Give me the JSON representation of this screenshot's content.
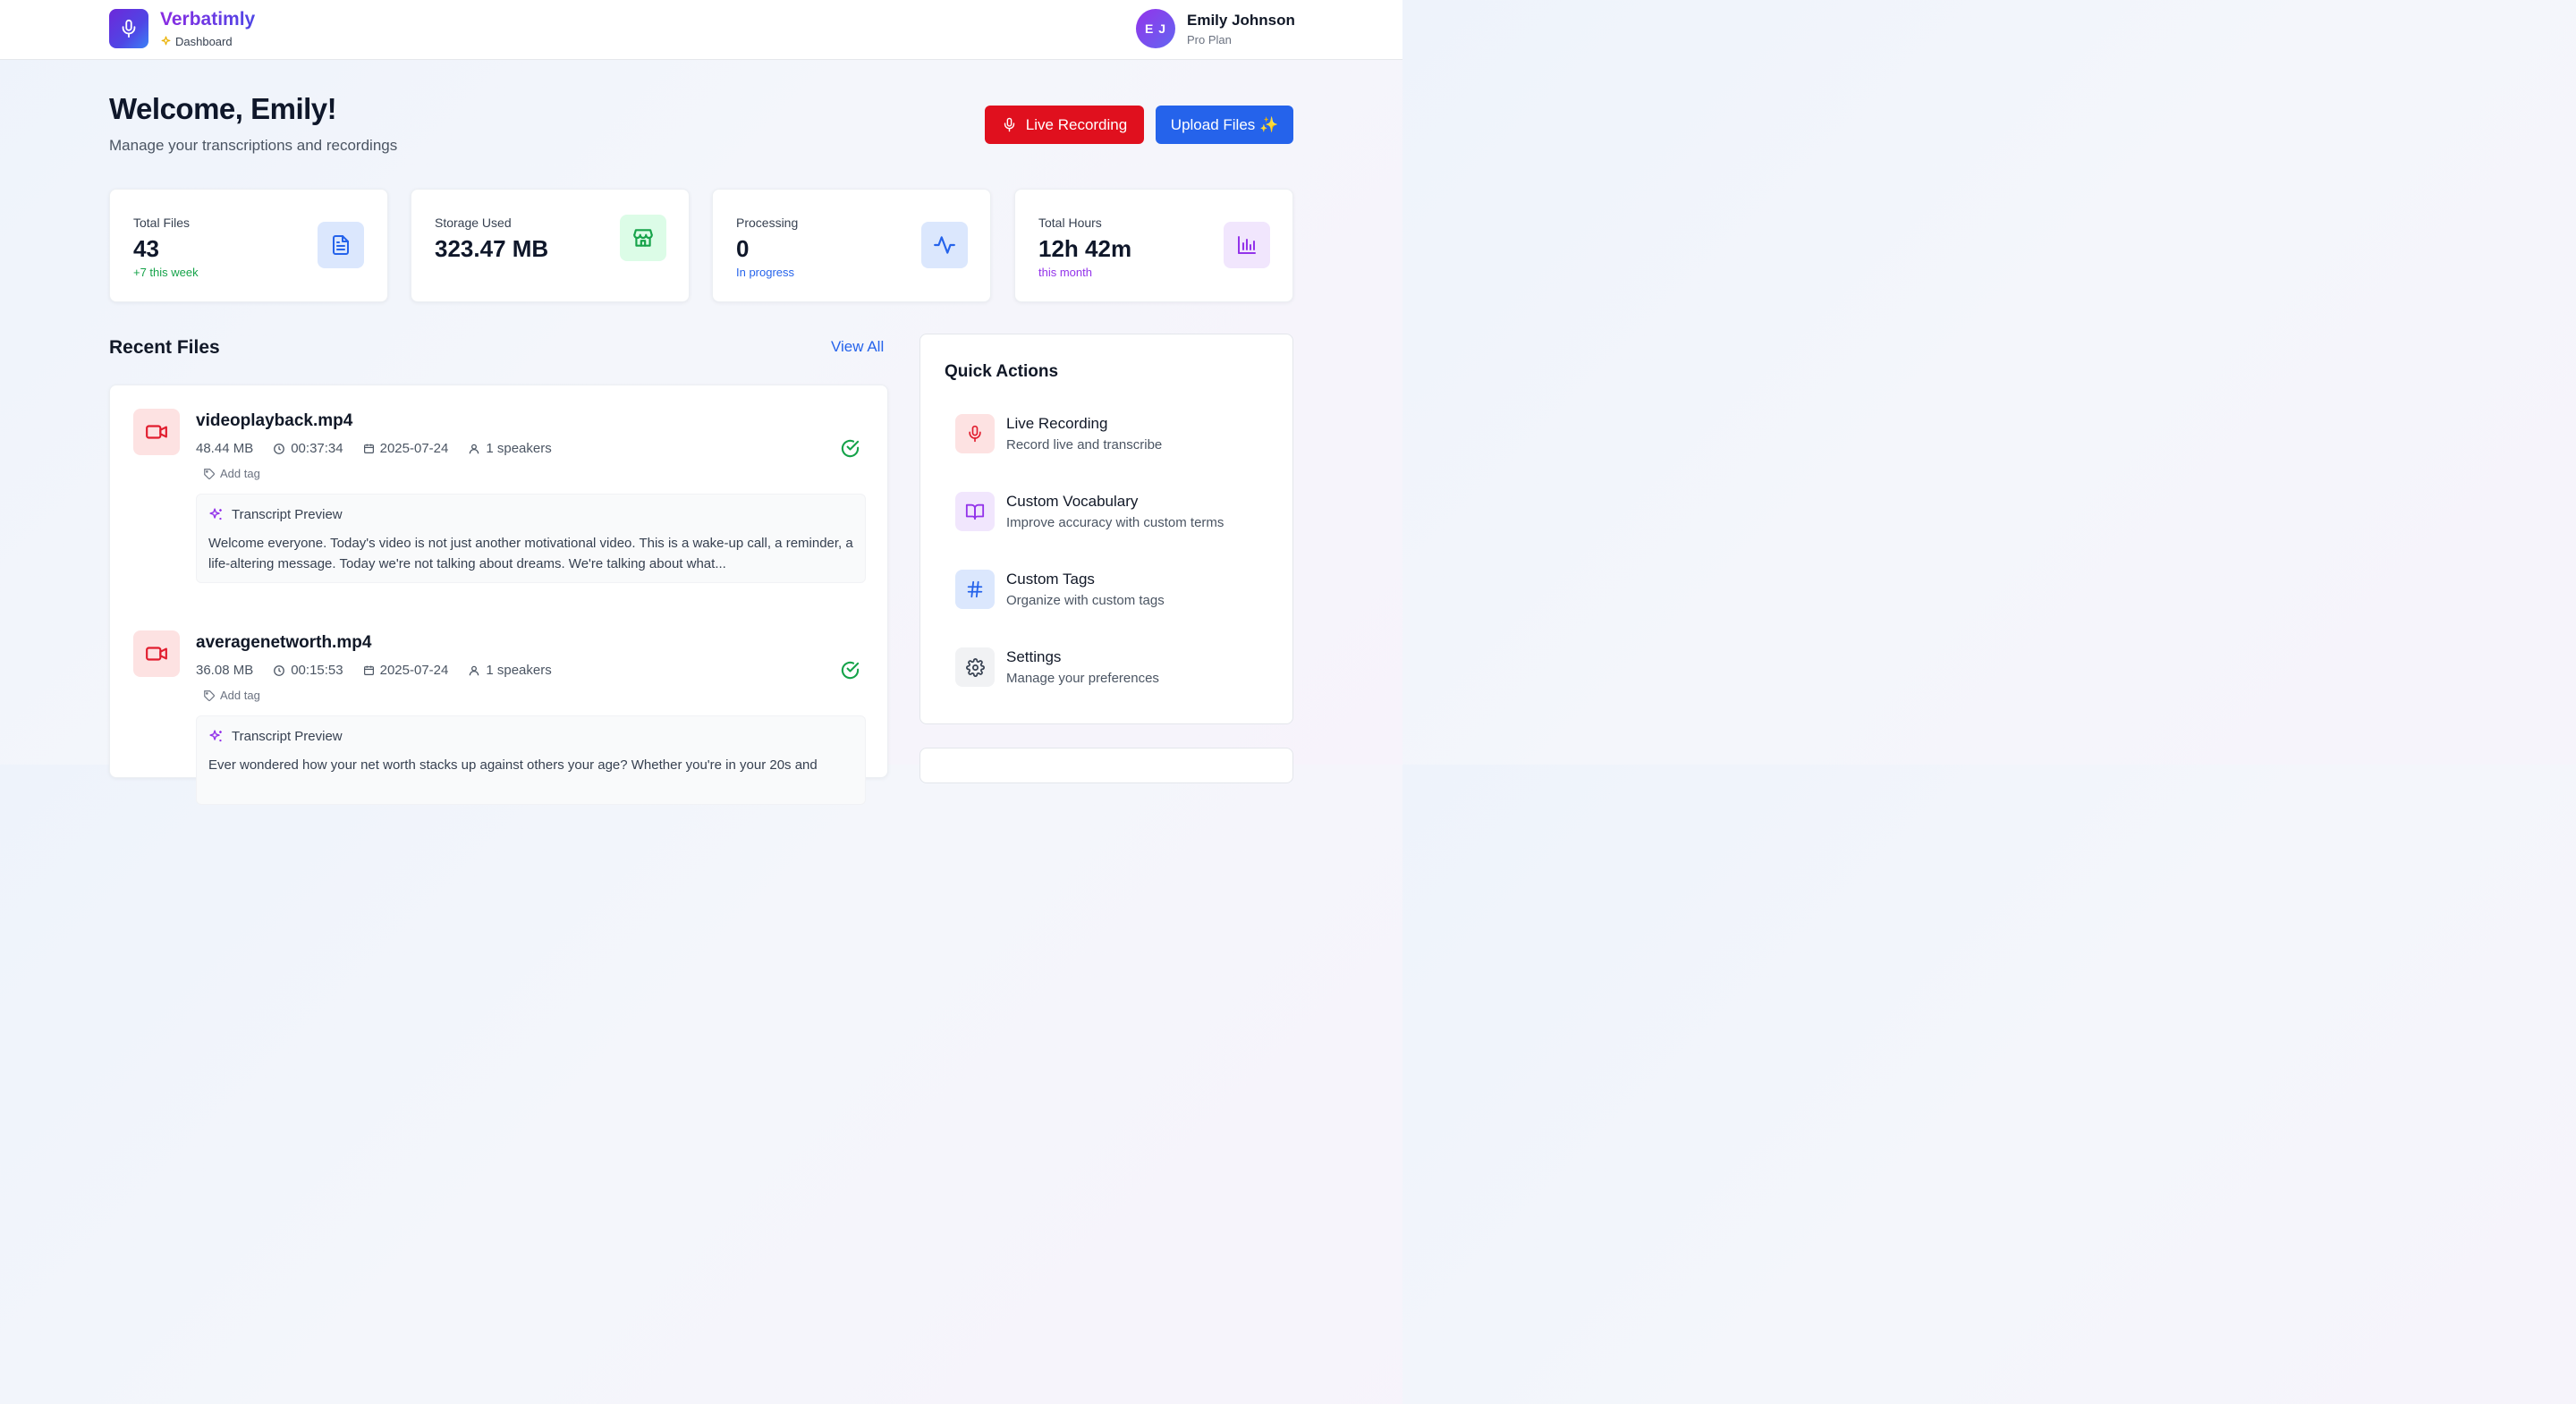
{
  "header": {
    "brand": "Verbatimly",
    "section": "Dashboard",
    "user": {
      "initials": "E J",
      "name": "Emily Johnson",
      "plan": "Pro Plan"
    }
  },
  "hero": {
    "title": "Welcome, Emily!",
    "subtitle": "Manage your transcriptions and recordings",
    "live_button": "Live Recording",
    "upload_button": "Upload Files ✨"
  },
  "stats": [
    {
      "label": "Total Files",
      "value": "43",
      "note": "+7 this week",
      "note_color": "#16a34a",
      "icon": "file-text-icon"
    },
    {
      "label": "Storage Used",
      "value": "323.47 MB",
      "note": "",
      "icon": "storage-icon"
    },
    {
      "label": "Processing",
      "value": "0",
      "note": "In progress",
      "note_color": "#2563eb",
      "icon": "activity-icon"
    },
    {
      "label": "Total Hours",
      "value": "12h 42m",
      "note": "this month",
      "note_color": "#9333ea",
      "icon": "bar-chart-icon"
    }
  ],
  "recent": {
    "title": "Recent Files",
    "view_all": "View All",
    "files": [
      {
        "name": "videoplayback.mp4",
        "size": "48.44 MB",
        "duration": "00:37:34",
        "date": "2025-07-24",
        "speakers": "1 speakers",
        "tag_label": "Add tag",
        "preview_label": "Transcript Preview",
        "preview": "Welcome everyone. Today's video is not just another motivational video. This is a wake-up call, a reminder, a life-altering message. Today we're not talking about dreams. We're talking about what..."
      },
      {
        "name": "averagenetworth.mp4",
        "size": "36.08 MB",
        "duration": "00:15:53",
        "date": "2025-07-24",
        "speakers": "1 speakers",
        "tag_label": "Add tag",
        "preview_label": "Transcript Preview",
        "preview": "Ever wondered how your net worth stacks up against others your age? Whether you're in your 20s and"
      }
    ]
  },
  "quick_actions": {
    "title": "Quick Actions",
    "items": [
      {
        "label": "Live Recording",
        "desc": "Record live and transcribe",
        "icon": "mic-icon"
      },
      {
        "label": "Custom Vocabulary",
        "desc": "Improve accuracy with custom terms",
        "icon": "book-icon"
      },
      {
        "label": "Custom Tags",
        "desc": "Organize with custom tags",
        "icon": "hash-icon"
      },
      {
        "label": "Settings",
        "desc": "Manage your preferences",
        "icon": "gear-icon"
      }
    ]
  },
  "colors": {
    "brand": "#7c3aed",
    "live_red": "#e0101e",
    "primary_blue": "#2563eb",
    "success_green": "#16a34a"
  }
}
